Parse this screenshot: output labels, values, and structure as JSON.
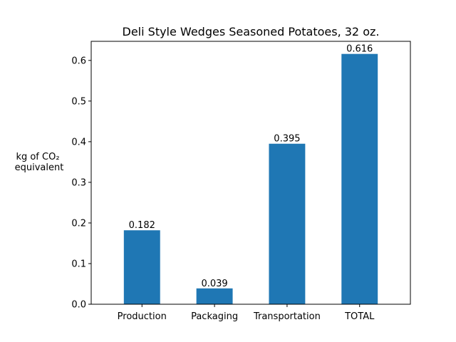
{
  "chart_data": {
    "type": "bar",
    "title": "Deli Style Wedges Seasoned Potatoes, 32 oz.",
    "xlabel": "",
    "ylabel_line1": "kg of CO₂",
    "ylabel_line2": "equivalent",
    "categories": [
      "Production",
      "Packaging",
      "Transportation",
      "TOTAL"
    ],
    "values": [
      0.182,
      0.039,
      0.395,
      0.616
    ],
    "value_labels": [
      "0.182",
      "0.039",
      "0.395",
      "0.616"
    ],
    "ylim": [
      0,
      0.647
    ],
    "yticks": [
      0.0,
      0.1,
      0.2,
      0.3,
      0.4,
      0.5,
      0.6
    ],
    "ytick_labels": [
      "0.0",
      "0.1",
      "0.2",
      "0.3",
      "0.4",
      "0.5",
      "0.6"
    ],
    "bar_color": "#1f77b4",
    "grid": false,
    "legend": "none"
  }
}
